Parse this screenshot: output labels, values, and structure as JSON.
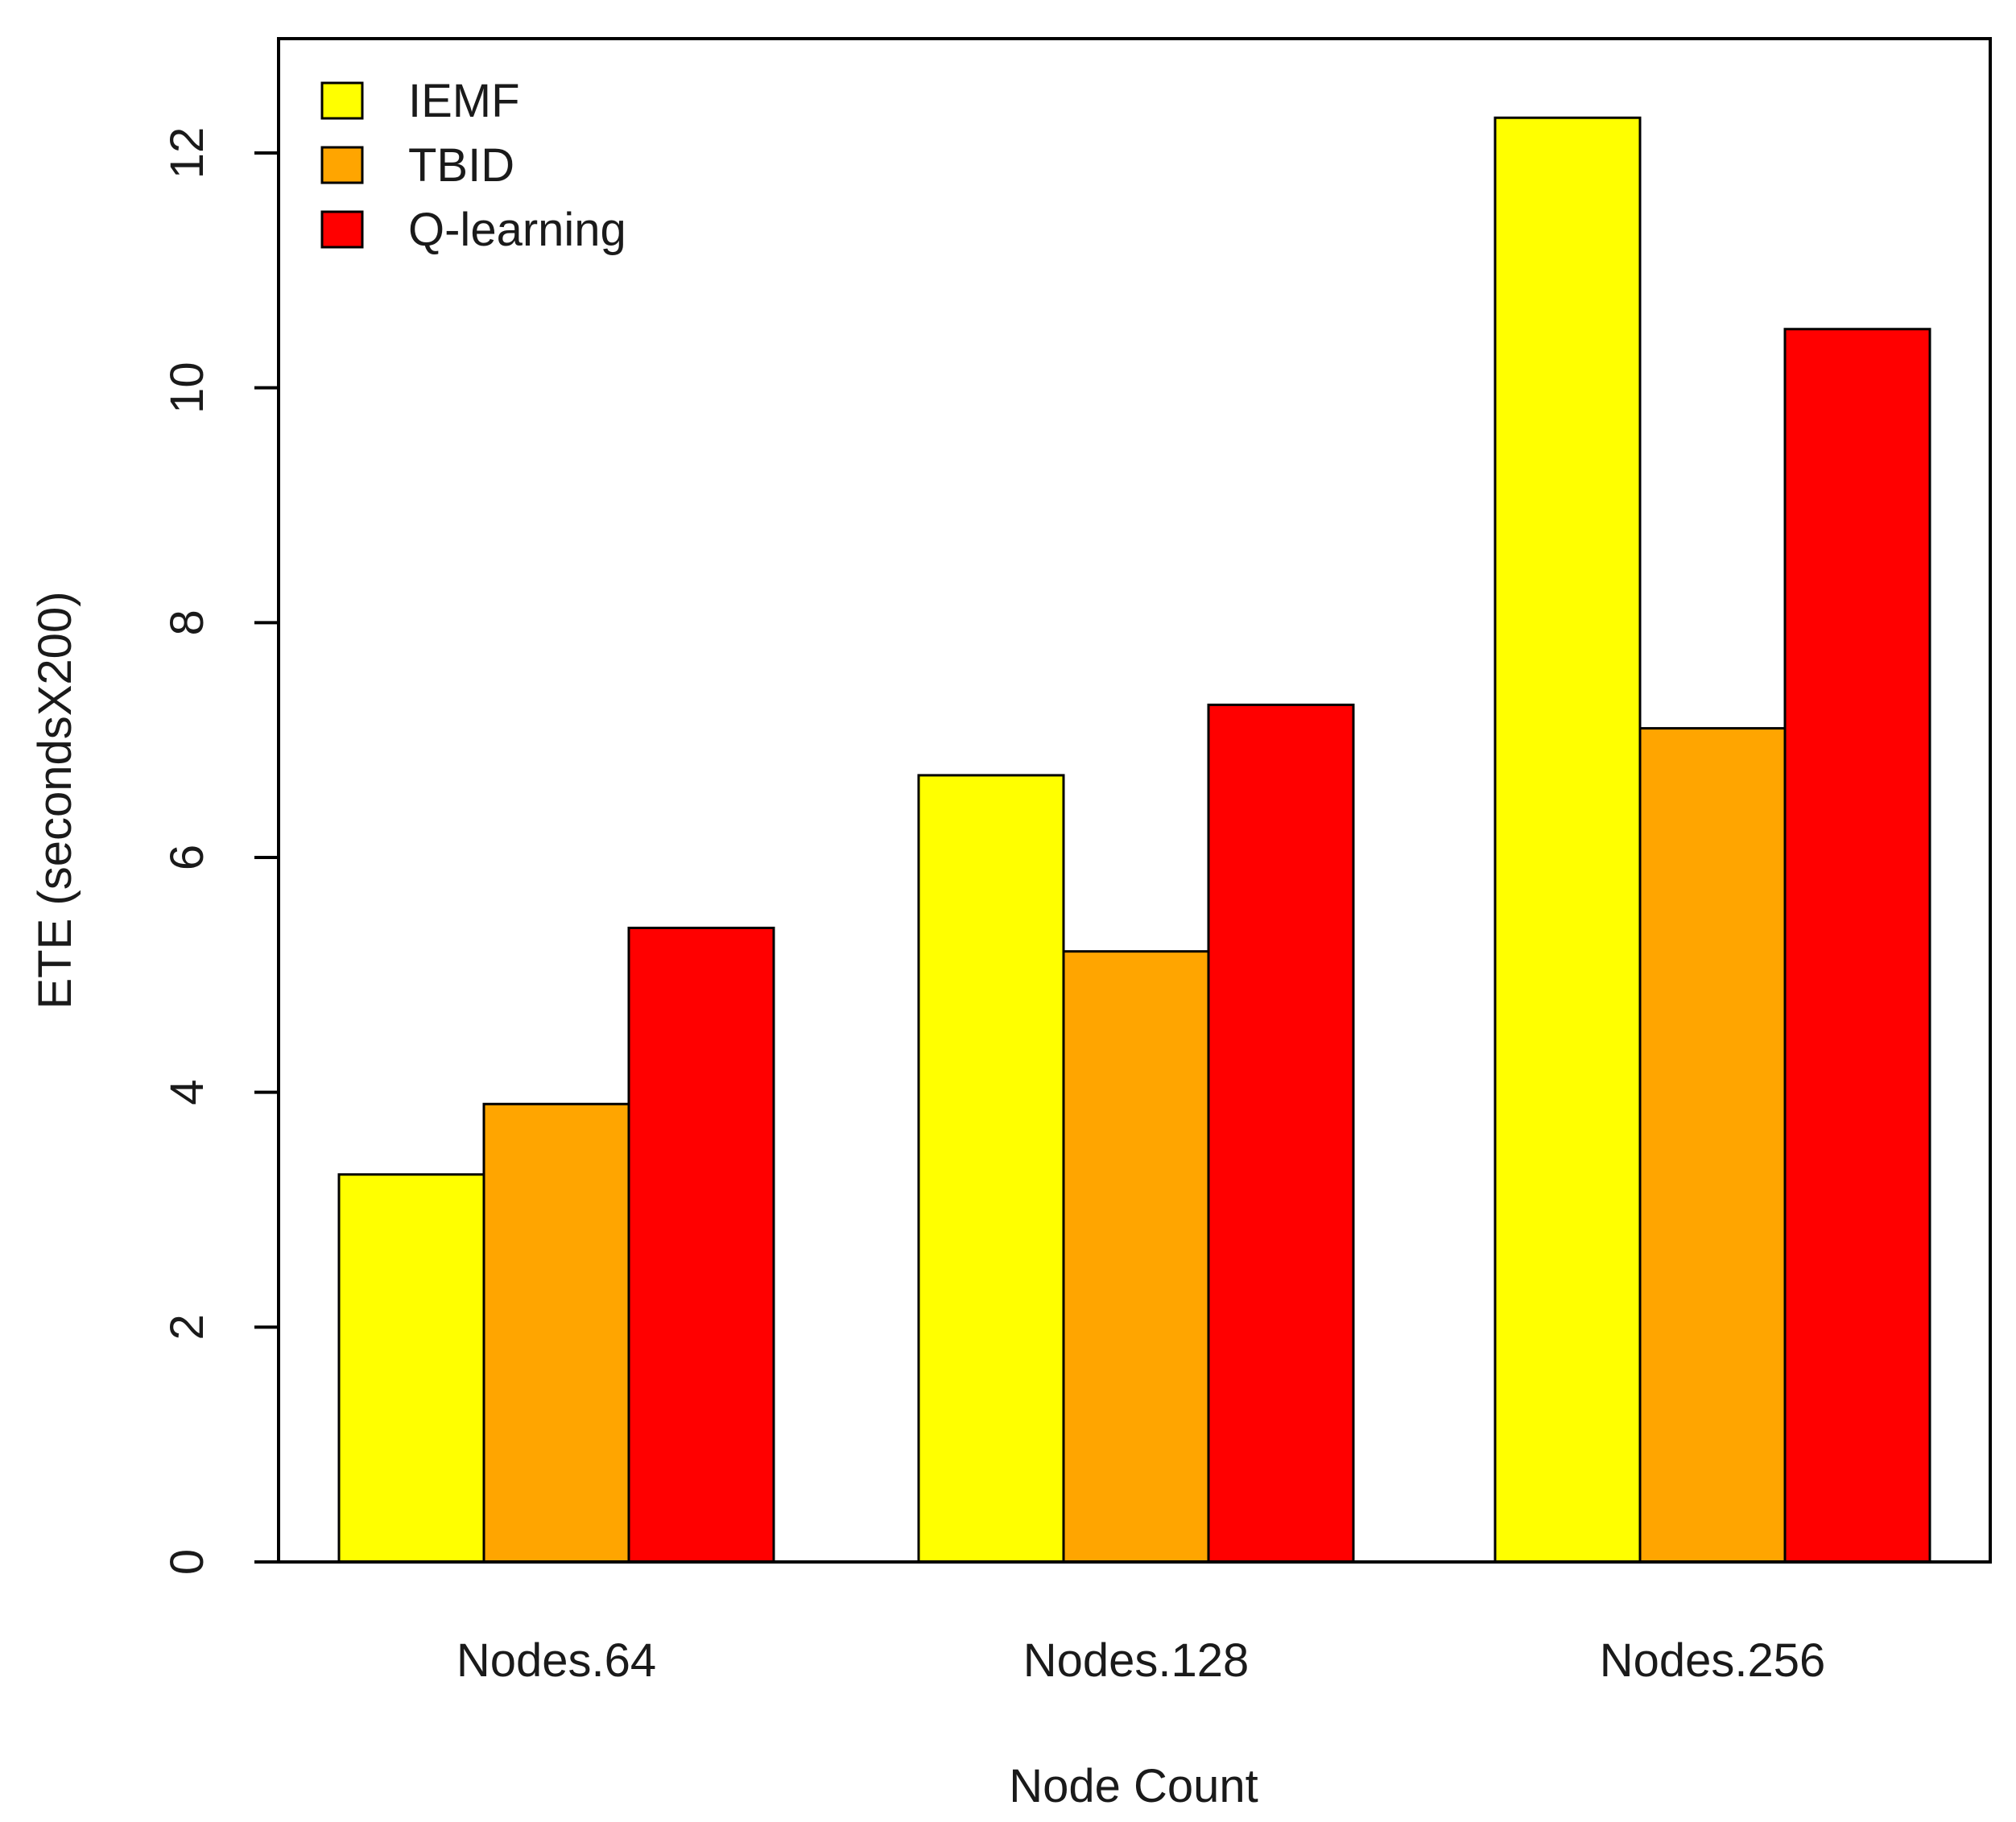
{
  "chart_data": {
    "type": "bar",
    "xlabel": "Node Count",
    "ylabel": "ETE (secondsX200)",
    "categories": [
      "Nodes.64",
      "Nodes.128",
      "Nodes.256"
    ],
    "series": [
      {
        "name": "IEMF",
        "color": "#ffff00",
        "values": [
          3.3,
          6.7,
          12.3
        ]
      },
      {
        "name": "TBID",
        "color": "#ffa500",
        "values": [
          3.9,
          5.2,
          7.1
        ]
      },
      {
        "name": "Q-learning",
        "color": "#ff0000",
        "values": [
          5.4,
          7.3,
          10.5
        ]
      }
    ],
    "ylim": [
      0,
      12.9
    ],
    "yticks": [
      0,
      2,
      4,
      6,
      8,
      10,
      12
    ],
    "legend_position": "top-left",
    "grid": false
  }
}
